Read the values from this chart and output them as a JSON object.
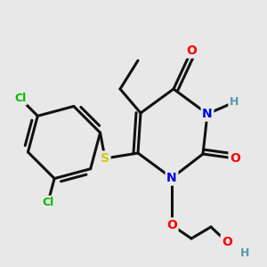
{
  "bg_color": "#e8e8e8",
  "atom_colors": {
    "N": "#0000dd",
    "O": "#ff0000",
    "S": "#cccc00",
    "Cl": "#00bb00",
    "H": "#5599aa"
  },
  "bond_color": "#111111",
  "bond_width": 2.2,
  "figsize": [
    3.0,
    3.0
  ],
  "dpi": 100
}
